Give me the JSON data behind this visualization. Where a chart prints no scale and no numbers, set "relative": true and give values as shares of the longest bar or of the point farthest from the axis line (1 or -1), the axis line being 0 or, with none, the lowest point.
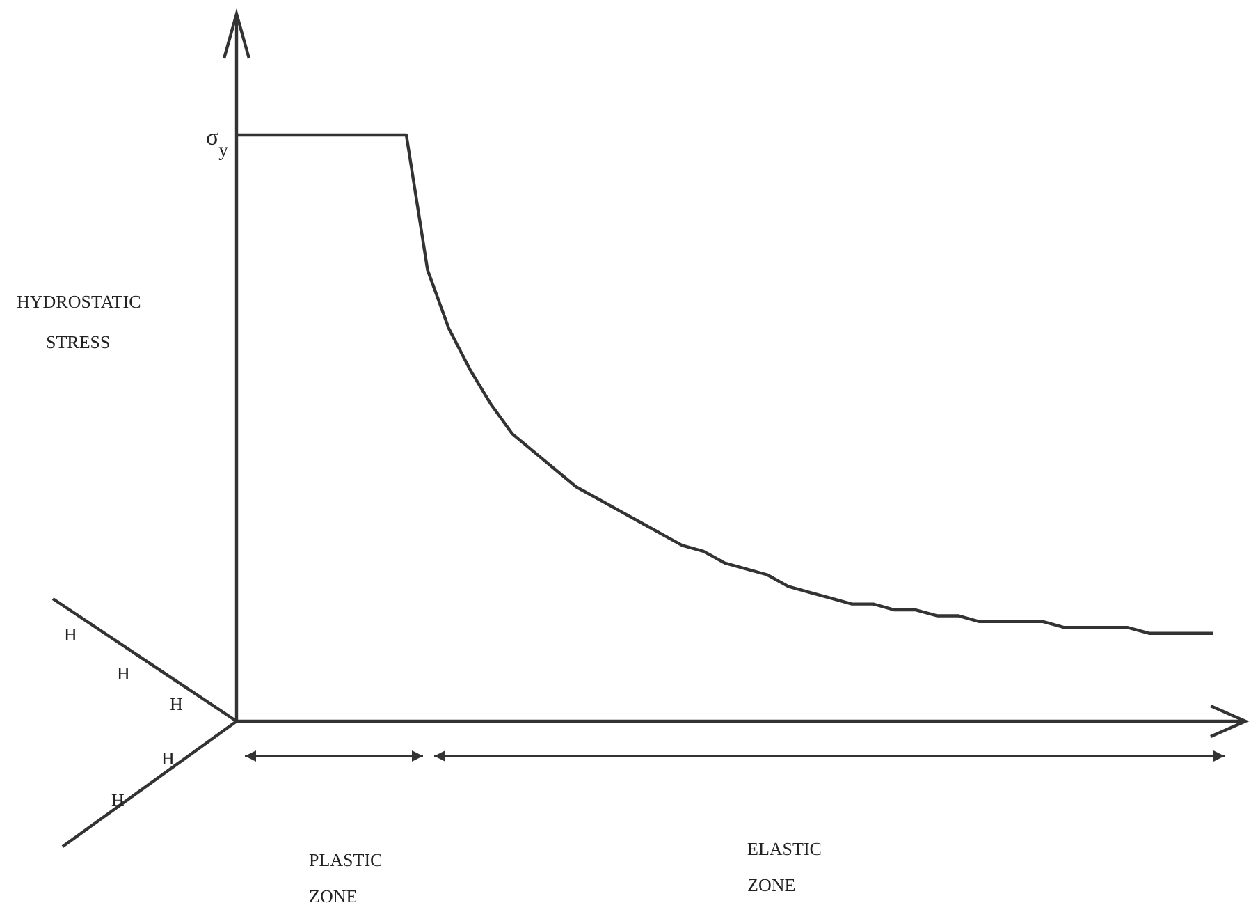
{
  "chart_data": {
    "type": "line",
    "relative": true,
    "categories": [
      null,
      null,
      null,
      null,
      null,
      null,
      null,
      null,
      null,
      null,
      null,
      null,
      null,
      null,
      null,
      null,
      null,
      null,
      null,
      null,
      null,
      null,
      null,
      null,
      null,
      null,
      null,
      null,
      null,
      null,
      null,
      null,
      null,
      null,
      null,
      null,
      null,
      null,
      null,
      null,
      null,
      null,
      null,
      null,
      null,
      null,
      null,
      null,
      null
    ],
    "series": [
      {
        "color": "#333333",
        "values": [
          1,
          1,
          1,
          1,
          1,
          1,
          1,
          1,
          1,
          0.77,
          0.67,
          0.6,
          0.54,
          0.49,
          0.46,
          0.43,
          0.4,
          0.38,
          0.36,
          0.34,
          0.32,
          0.3,
          0.29,
          0.27,
          0.26,
          0.25,
          0.23,
          0.22,
          0.21,
          0.2,
          0.2,
          0.19,
          0.19,
          0.18,
          0.18,
          0.17,
          0.17,
          0.17,
          0.17,
          0.16,
          0.16,
          0.16,
          0.16,
          0.15,
          0.15,
          0.15,
          0.15,
          null,
          null
        ]
      }
    ],
    "annotations": [
      "σ$_{y}$",
      "HYDROSTATIC STRESS",
      "H",
      "H",
      "H",
      "H",
      "H",
      "PLASTIC ZONE",
      "ELASTIC ZONE"
    ],
    "marker": "none",
    "line_style": "solid",
    "grid": false
  }
}
